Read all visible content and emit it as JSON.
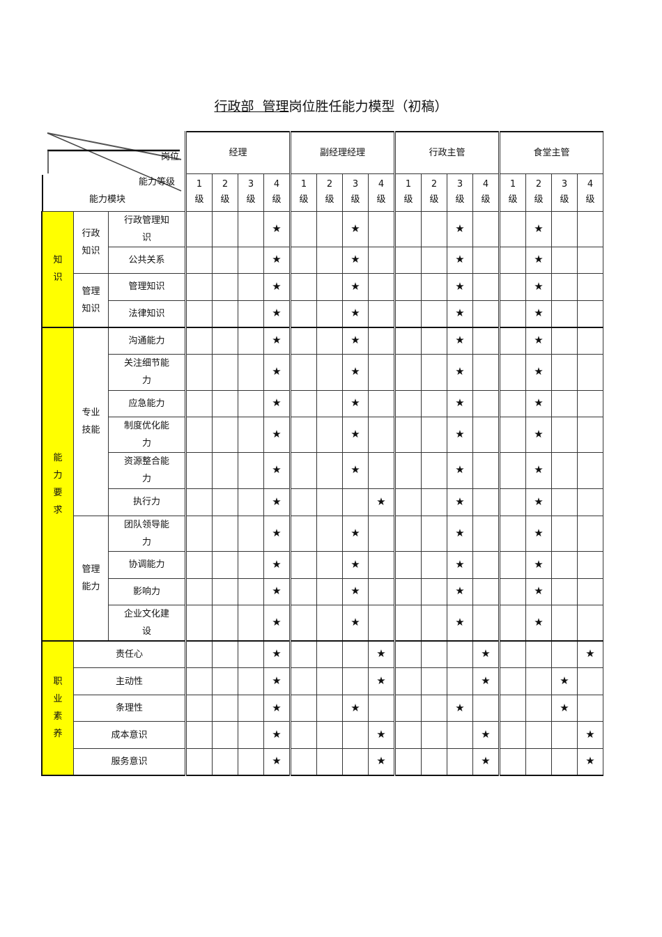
{
  "title": {
    "underlined": "行政部  管理",
    "rest": "岗位胜任能力模型（初稿）"
  },
  "header": {
    "position_label": "岗位",
    "level_label": "能力等级",
    "module_label": "能力模块",
    "positions": [
      "经理",
      "副经理经理",
      "行政主管",
      "食堂主管"
    ],
    "levels": [
      {
        "num": "1",
        "unit": "级"
      },
      {
        "num": "2",
        "unit": "级"
      },
      {
        "num": "3",
        "unit": "级"
      },
      {
        "num": "4",
        "unit": "级"
      }
    ]
  },
  "star_symbol": "★",
  "highlight_color": "#ffff00",
  "sections": [
    {
      "category": "知识",
      "groups": [
        {
          "sub": "行政知识",
          "items": [
            {
              "name": "行政管理知识",
              "stars": [
                4,
                3,
                3,
                2
              ]
            },
            {
              "name": "公共关系",
              "stars": [
                4,
                3,
                3,
                2
              ]
            }
          ]
        },
        {
          "sub": "管理知识",
          "items": [
            {
              "name": "管理知识",
              "stars": [
                4,
                3,
                3,
                2
              ]
            },
            {
              "name": "法律知识",
              "stars": [
                4,
                3,
                3,
                2
              ]
            }
          ]
        }
      ]
    },
    {
      "category": "能力要求",
      "groups": [
        {
          "sub": "专业技能",
          "items": [
            {
              "name": "沟通能力",
              "stars": [
                4,
                3,
                3,
                2
              ]
            },
            {
              "name": "关注细节能力",
              "stars": [
                4,
                3,
                3,
                2
              ]
            },
            {
              "name": "应急能力",
              "stars": [
                4,
                3,
                3,
                2
              ]
            },
            {
              "name": "制度优化能力",
              "stars": [
                4,
                3,
                3,
                2
              ]
            },
            {
              "name": "资源整合能力",
              "stars": [
                4,
                3,
                3,
                2
              ]
            },
            {
              "name": "执行力",
              "stars": [
                4,
                4,
                3,
                2
              ]
            }
          ]
        },
        {
          "sub": "管理能力",
          "items": [
            {
              "name": "团队领导能力",
              "stars": [
                4,
                3,
                3,
                2
              ]
            },
            {
              "name": "协调能力",
              "stars": [
                4,
                3,
                3,
                2
              ]
            },
            {
              "name": "影响力",
              "stars": [
                4,
                3,
                3,
                2
              ]
            },
            {
              "name": "企业文化建设",
              "stars": [
                4,
                3,
                3,
                2
              ]
            }
          ]
        }
      ]
    },
    {
      "category": "职业素养",
      "groups": [
        {
          "sub": "",
          "items": [
            {
              "name": "责任心",
              "stars": [
                4,
                4,
                4,
                4
              ]
            },
            {
              "name": "主动性",
              "stars": [
                4,
                4,
                4,
                3
              ]
            },
            {
              "name": "条理性",
              "stars": [
                4,
                3,
                3,
                3
              ]
            },
            {
              "name": "成本意识",
              "stars": [
                4,
                4,
                4,
                4
              ]
            },
            {
              "name": "服务意识",
              "stars": [
                4,
                4,
                4,
                4
              ]
            }
          ]
        }
      ]
    }
  ]
}
